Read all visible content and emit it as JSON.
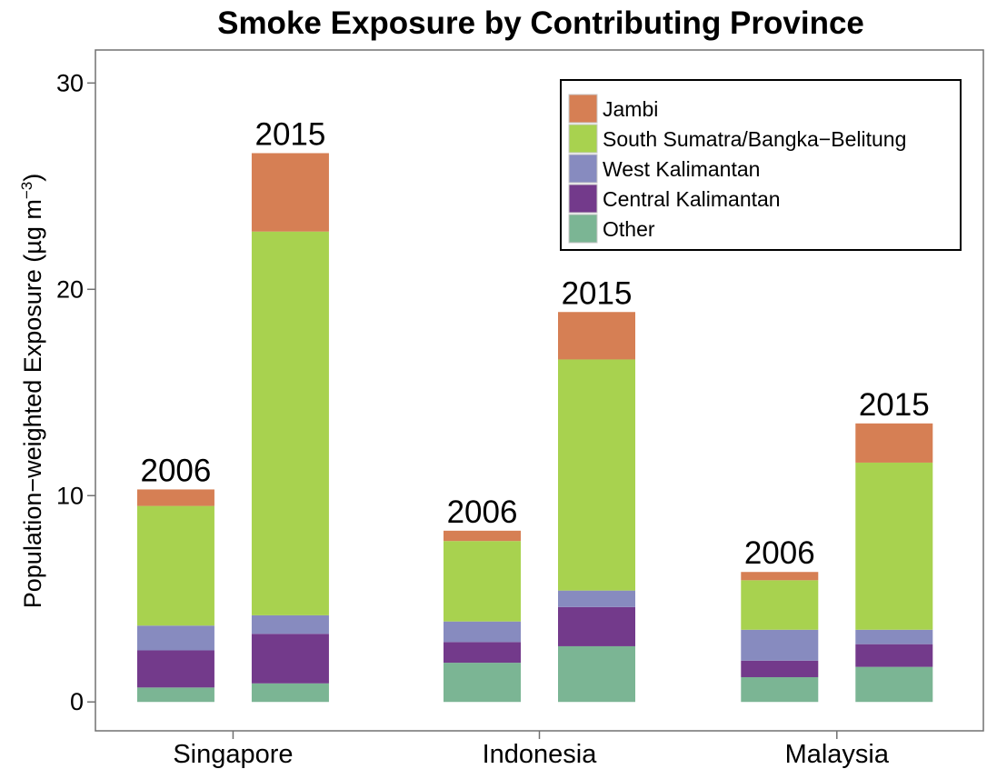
{
  "chart_data": {
    "type": "bar",
    "stacked": true,
    "title": "Smoke Exposure by Contributing Province",
    "ylabel": "Population−weighted Exposure (µg m",
    "ylabel_superscript": "−3",
    "ylabel_suffix": ")",
    "ylim": [
      -1.4,
      31.6
    ],
    "yticks": [
      0,
      10,
      20,
      30
    ],
    "ytick_labels": [
      "0",
      "10",
      "20",
      "30"
    ],
    "grid": false,
    "legend_position": "top-right",
    "categories": [
      "Singapore",
      "Indonesia",
      "Malaysia"
    ],
    "years": [
      "2006",
      "2015"
    ],
    "series": [
      {
        "name": "Other",
        "color": "#7bb594",
        "values": [
          [
            0.7,
            0.9
          ],
          [
            1.9,
            2.7
          ],
          [
            1.2,
            1.7
          ]
        ]
      },
      {
        "name": "Central Kalimantan",
        "color": "#733a8b",
        "values": [
          [
            1.8,
            2.4
          ],
          [
            1.0,
            1.9
          ],
          [
            0.8,
            1.1
          ]
        ]
      },
      {
        "name": "West Kalimantan",
        "color": "#878bbf",
        "values": [
          [
            1.2,
            0.9
          ],
          [
            1.0,
            0.8
          ],
          [
            1.5,
            0.7
          ]
        ]
      },
      {
        "name": "South Sumatra/Bangka−Belitung",
        "color": "#a8d24f",
        "values": [
          [
            5.8,
            18.6
          ],
          [
            3.9,
            11.2
          ],
          [
            2.4,
            8.1
          ]
        ]
      },
      {
        "name": "Jambi",
        "color": "#d67f54",
        "values": [
          [
            0.8,
            3.8
          ],
          [
            0.5,
            2.3
          ],
          [
            0.4,
            1.9
          ]
        ]
      }
    ],
    "legend_order": [
      "Jambi",
      "South Sumatra/Bangka−Belitung",
      "West Kalimantan",
      "Central Kalimantan",
      "Other"
    ]
  }
}
